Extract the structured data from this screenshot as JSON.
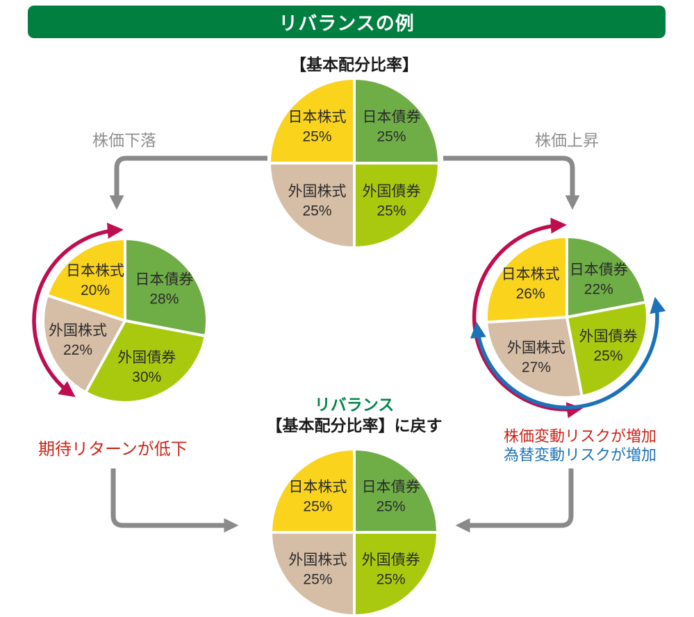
{
  "header": {
    "title": "リバランスの例",
    "bg": "#007F41",
    "text_color": "#FFFFFF"
  },
  "labels": {
    "base_allocation": "【基本配分比率】",
    "stock_fall": "株価下落",
    "stock_rise": "株価上昇",
    "expected_return_down": "期待リターンが低下",
    "price_risk_up": "株価変動リスクが増加",
    "fx_risk_up": "為替変動リスクが増加",
    "rebalance_title": "リバランス",
    "rebalance_subtitle": "【基本配分比率】に戻す"
  },
  "colors": {
    "header_green": "#007F41",
    "brand_green_text": "#00874A",
    "japan_equity_yellow": "#F9D31C",
    "japan_bond_green": "#6FAD47",
    "foreign_bond_lime": "#A9C90F",
    "foreign_equity_tan": "#D6BDA6",
    "gray_arrow": "#8A8A8A",
    "crimson_arrow": "#BF0E50",
    "blue_arrow": "#1C72B8",
    "red_text": "#CC2418"
  },
  "chart_data": [
    {
      "id": "base",
      "type": "pie",
      "title": "【基本配分比率】",
      "unit": "%",
      "start_angle_deg": 0,
      "direction": "clockwise",
      "slices": [
        {
          "key": "japan-bond",
          "label": "日本債券",
          "value": 25,
          "color": "#6FAD47"
        },
        {
          "key": "foreign-bond",
          "label": "外国債券",
          "value": 25,
          "color": "#A9C90F"
        },
        {
          "key": "foreign-equity",
          "label": "外国株式",
          "value": 25,
          "color": "#D6BDA6"
        },
        {
          "key": "japan-equity",
          "label": "日本株式",
          "value": 25,
          "color": "#F9D31C"
        }
      ]
    },
    {
      "id": "after-fall",
      "type": "pie",
      "title": "株価下落",
      "unit": "%",
      "start_angle_deg": 0,
      "direction": "clockwise",
      "slices": [
        {
          "key": "japan-bond",
          "label": "日本債券",
          "value": 28,
          "color": "#6FAD47"
        },
        {
          "key": "foreign-bond",
          "label": "外国債券",
          "value": 30,
          "color": "#A9C90F"
        },
        {
          "key": "foreign-equity",
          "label": "外国株式",
          "value": 22,
          "color": "#D6BDA6"
        },
        {
          "key": "japan-equity",
          "label": "日本株式",
          "value": 20,
          "color": "#F9D31C"
        }
      ]
    },
    {
      "id": "after-rise",
      "type": "pie",
      "title": "株価上昇",
      "unit": "%",
      "start_angle_deg": 0,
      "direction": "clockwise",
      "slices": [
        {
          "key": "japan-bond",
          "label": "日本債券",
          "value": 22,
          "color": "#6FAD47"
        },
        {
          "key": "foreign-bond",
          "label": "外国債券",
          "value": 25,
          "color": "#A9C90F"
        },
        {
          "key": "foreign-equity",
          "label": "外国株式",
          "value": 27,
          "color": "#D6BDA6"
        },
        {
          "key": "japan-equity",
          "label": "日本株式",
          "value": 26,
          "color": "#F9D31C"
        }
      ]
    },
    {
      "id": "rebalanced",
      "type": "pie",
      "title": "【基本配分比率】に戻す",
      "unit": "%",
      "start_angle_deg": 0,
      "direction": "clockwise",
      "slices": [
        {
          "key": "japan-bond",
          "label": "日本債券",
          "value": 25,
          "color": "#6FAD47"
        },
        {
          "key": "foreign-bond",
          "label": "外国債券",
          "value": 25,
          "color": "#A9C90F"
        },
        {
          "key": "foreign-equity",
          "label": "外国株式",
          "value": 25,
          "color": "#D6BDA6"
        },
        {
          "key": "japan-equity",
          "label": "日本株式",
          "value": 25,
          "color": "#F9D31C"
        }
      ]
    }
  ]
}
